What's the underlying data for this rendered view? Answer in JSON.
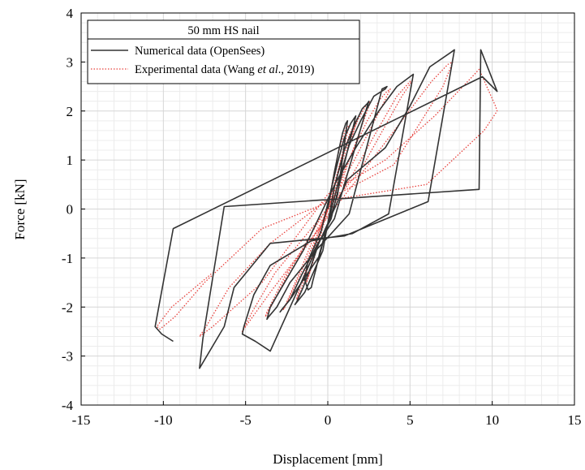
{
  "chart_data": {
    "type": "line",
    "title": "",
    "xlabel": "Displacement [mm]",
    "ylabel": "Force [kN]",
    "xlim": [
      -15,
      15
    ],
    "ylim": [
      -4,
      4
    ],
    "xticks": [
      "-15",
      "-10",
      "-5",
      "0",
      "5",
      "10",
      "15"
    ],
    "yticks": [
      "4",
      "3",
      "2",
      "1",
      "0",
      "-1",
      "-2",
      "-3",
      "-4"
    ],
    "grid": true,
    "legend": {
      "placement": "top-left",
      "title": "50 mm HS nail",
      "entries": [
        {
          "label": "Numerical data (OpenSees)",
          "style": "solid",
          "color": "#333333"
        },
        {
          "label_prefix": "Experimental data (Wang ",
          "label_italic": "et al",
          "label_suffix": "., 2019)",
          "style": "dotted",
          "color": "#e8413c"
        }
      ]
    },
    "series": [
      {
        "name": "Numerical data (OpenSees)",
        "color": "#333333",
        "style": "solid",
        "x": [
          0.0,
          0.4,
          0.7,
          0.9,
          1.1,
          1.2,
          0.6,
          -0.2,
          -0.5,
          -0.7,
          -0.9,
          -1.0,
          -1.2,
          -1.4,
          -1.2,
          -0.4,
          0.2,
          0.6,
          1.0,
          1.4,
          1.6,
          1.7,
          1.6,
          0.2,
          -0.5,
          -1.0,
          -1.5,
          -1.9,
          -2.0,
          -1.4,
          -0.3,
          0.4,
          1.0,
          1.6,
          2.1,
          2.4,
          2.5,
          2.4,
          0.4,
          -0.6,
          -1.6,
          -2.3,
          -2.8,
          -2.9,
          -2.2,
          -0.5,
          0.6,
          1.3,
          2.0,
          2.8,
          3.5,
          3.6,
          3.3,
          1.3,
          -0.6,
          -2.3,
          -3.1,
          -3.6,
          -3.7,
          -3.5,
          -1.5,
          0.5,
          1.7,
          3.1,
          4.2,
          5.0,
          5.2,
          3.7,
          1.5,
          -1.0,
          -3.5,
          -4.5,
          -5.1,
          -5.2,
          -4.4,
          -3.5,
          1.2,
          3.5,
          5.0,
          6.2,
          7.5,
          7.7,
          6.1,
          1.0,
          -3.5,
          -5.7,
          -6.3,
          -7.8,
          -7.6,
          -6.3,
          9.2,
          9.3,
          10.3,
          9.4,
          -9.4,
          -10.5,
          -10.1,
          -9.4
        ],
        "y": [
          0.0,
          0.75,
          1.25,
          1.55,
          1.75,
          1.8,
          0.3,
          -0.55,
          -0.9,
          -1.2,
          -1.45,
          -1.6,
          -1.65,
          -1.45,
          -1.05,
          -0.45,
          0.4,
          0.95,
          1.45,
          1.75,
          1.85,
          1.9,
          1.75,
          -0.2,
          -0.65,
          -1.15,
          -1.6,
          -1.9,
          -1.95,
          -1.7,
          -0.85,
          0.45,
          1.2,
          1.7,
          2.05,
          2.15,
          2.2,
          2.1,
          -0.2,
          -0.7,
          -1.35,
          -1.85,
          -2.05,
          -2.1,
          -1.8,
          -0.95,
          0.5,
          1.3,
          1.8,
          2.3,
          2.45,
          2.5,
          2.45,
          -0.1,
          -0.8,
          -1.5,
          -2.0,
          -2.2,
          -2.25,
          -2.0,
          -0.85,
          0.55,
          1.25,
          2.0,
          2.5,
          2.7,
          2.75,
          -0.1,
          -0.5,
          -0.65,
          -1.15,
          -1.75,
          -2.4,
          -2.55,
          -2.7,
          -2.9,
          0.6,
          1.25,
          2.1,
          2.9,
          3.2,
          3.25,
          0.15,
          -0.55,
          -0.7,
          -1.6,
          -2.4,
          -3.25,
          -2.65,
          0.05,
          0.4,
          3.25,
          2.4,
          2.7,
          -0.4,
          -2.4,
          -2.55,
          -2.7
        ]
      },
      {
        "name": "Experimental data (Wang et al., 2019)",
        "color": "#e8413c",
        "style": "dotted",
        "x": [
          0.0,
          0.3,
          0.6,
          0.9,
          1.1,
          1.3,
          1.0,
          0.3,
          -0.3,
          -0.8,
          -1.1,
          -1.3,
          -1.0,
          -0.4,
          0.3,
          0.8,
          1.3,
          1.7,
          1.8,
          1.5,
          0.4,
          -0.5,
          -1.2,
          -1.7,
          -1.9,
          -1.6,
          -0.8,
          0.3,
          1.1,
          1.8,
          2.3,
          2.6,
          2.4,
          0.6,
          -0.7,
          -1.6,
          -2.3,
          -2.7,
          -2.6,
          -1.5,
          0.3,
          1.4,
          2.4,
          3.2,
          3.6,
          3.8,
          3.3,
          1.0,
          -1.0,
          -2.4,
          -3.3,
          -3.8,
          -3.7,
          -2.5,
          -0.5,
          1.5,
          3.0,
          4.2,
          5.0,
          5.2,
          4.5,
          2.0,
          -1.0,
          -3.2,
          -4.6,
          -5.2,
          -5.0,
          -3.5,
          -1.0,
          2.0,
          4.5,
          6.3,
          7.3,
          7.6,
          7.0,
          4.0,
          0.0,
          -3.5,
          -6.0,
          -7.4,
          -7.8,
          -7.0,
          -4.0,
          0.0,
          3.5,
          6.5,
          8.5,
          9.2,
          10.2,
          10.3,
          9.5,
          6.0,
          0.5,
          -4.0,
          -7.5,
          -9.3,
          -10.2,
          -10.4,
          -9.5,
          -7.0
        ],
        "y": [
          0.0,
          0.6,
          1.1,
          1.45,
          1.65,
          1.7,
          1.3,
          0.3,
          -0.3,
          -0.9,
          -1.3,
          -1.5,
          -1.2,
          -0.5,
          0.4,
          1.0,
          1.5,
          1.8,
          1.85,
          1.5,
          0.35,
          -0.4,
          -1.1,
          -1.6,
          -1.85,
          -1.6,
          -0.8,
          0.4,
          1.2,
          1.8,
          2.1,
          2.2,
          2.0,
          0.35,
          -0.45,
          -1.2,
          -1.75,
          -2.05,
          -2.0,
          -1.2,
          0.2,
          1.1,
          1.8,
          2.25,
          2.4,
          2.45,
          2.1,
          0.6,
          -0.5,
          -1.3,
          -1.9,
          -2.2,
          -2.1,
          -1.3,
          -0.4,
          0.7,
          1.6,
          2.3,
          2.6,
          2.65,
          2.3,
          0.8,
          -0.4,
          -1.3,
          -2.1,
          -2.5,
          -2.4,
          -1.7,
          -0.6,
          0.7,
          1.8,
          2.6,
          2.95,
          3.0,
          2.5,
          0.9,
          0.2,
          -0.7,
          -1.6,
          -2.4,
          -2.6,
          -2.4,
          -1.5,
          0.3,
          1.0,
          1.9,
          2.6,
          2.85,
          2.1,
          2.0,
          1.6,
          0.5,
          0.2,
          -0.4,
          -1.5,
          -2.2,
          -2.45,
          -2.4,
          -2.0,
          -1.3
        ]
      }
    ]
  }
}
